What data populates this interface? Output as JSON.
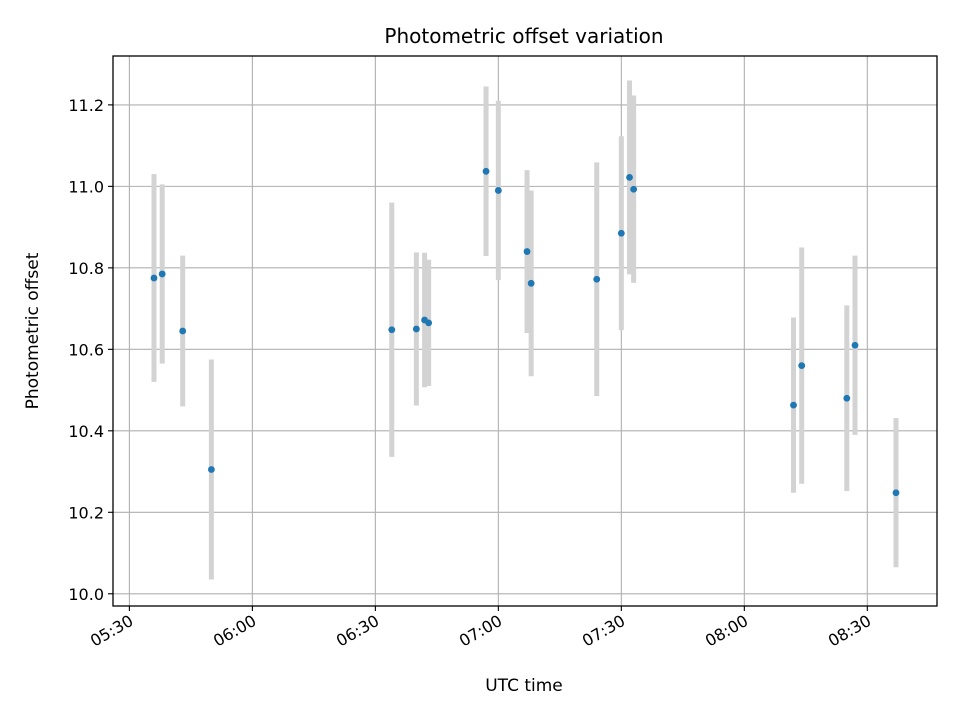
{
  "chart_data": {
    "type": "scatter",
    "title": "Photometric offset variation",
    "xlabel": "UTC time",
    "ylabel": "Photometric offset",
    "xlim": [
      "05:26",
      "08:47"
    ],
    "ylim": [
      9.97,
      11.32
    ],
    "x_ticks": [
      "05:30",
      "06:00",
      "06:30",
      "07:00",
      "07:30",
      "08:00",
      "08:30"
    ],
    "y_ticks": [
      "10.0",
      "10.2",
      "10.4",
      "10.6",
      "10.8",
      "11.0",
      "11.2"
    ],
    "grid": true,
    "colors": {
      "point": "#1f77b4",
      "errorbar": "#d3d3d3",
      "grid": "#b0b0b0"
    },
    "series": [
      {
        "points": [
          {
            "x": "05:36",
            "y": 10.775,
            "yerr": 0.255
          },
          {
            "x": "05:38",
            "y": 10.785,
            "yerr": 0.22
          },
          {
            "x": "05:43",
            "y": 10.645,
            "yerr": 0.185
          },
          {
            "x": "05:50",
            "y": 10.305,
            "yerr": 0.27
          },
          {
            "x": "06:34",
            "y": 10.648,
            "yerr": 0.312
          },
          {
            "x": "06:40",
            "y": 10.65,
            "yerr": 0.188
          },
          {
            "x": "06:42",
            "y": 10.672,
            "yerr": 0.165
          },
          {
            "x": "06:43",
            "y": 10.665,
            "yerr": 0.155
          },
          {
            "x": "06:57",
            "y": 11.037,
            "yerr": 0.208
          },
          {
            "x": "07:00",
            "y": 10.99,
            "yerr": 0.22
          },
          {
            "x": "07:07",
            "y": 10.84,
            "yerr": 0.2
          },
          {
            "x": "07:08",
            "y": 10.762,
            "yerr": 0.228
          },
          {
            "x": "07:24",
            "y": 10.772,
            "yerr": 0.287
          },
          {
            "x": "07:30",
            "y": 10.885,
            "yerr": 0.238
          },
          {
            "x": "07:32",
            "y": 11.022,
            "yerr": 0.238
          },
          {
            "x": "07:33",
            "y": 10.993,
            "yerr": 0.23
          },
          {
            "x": "08:12",
            "y": 10.463,
            "yerr": 0.215
          },
          {
            "x": "08:14",
            "y": 10.56,
            "yerr": 0.29
          },
          {
            "x": "08:25",
            "y": 10.48,
            "yerr": 0.228
          },
          {
            "x": "08:27",
            "y": 10.61,
            "yerr": 0.22
          },
          {
            "x": "08:37",
            "y": 10.248,
            "yerr": 0.183
          }
        ]
      }
    ]
  }
}
